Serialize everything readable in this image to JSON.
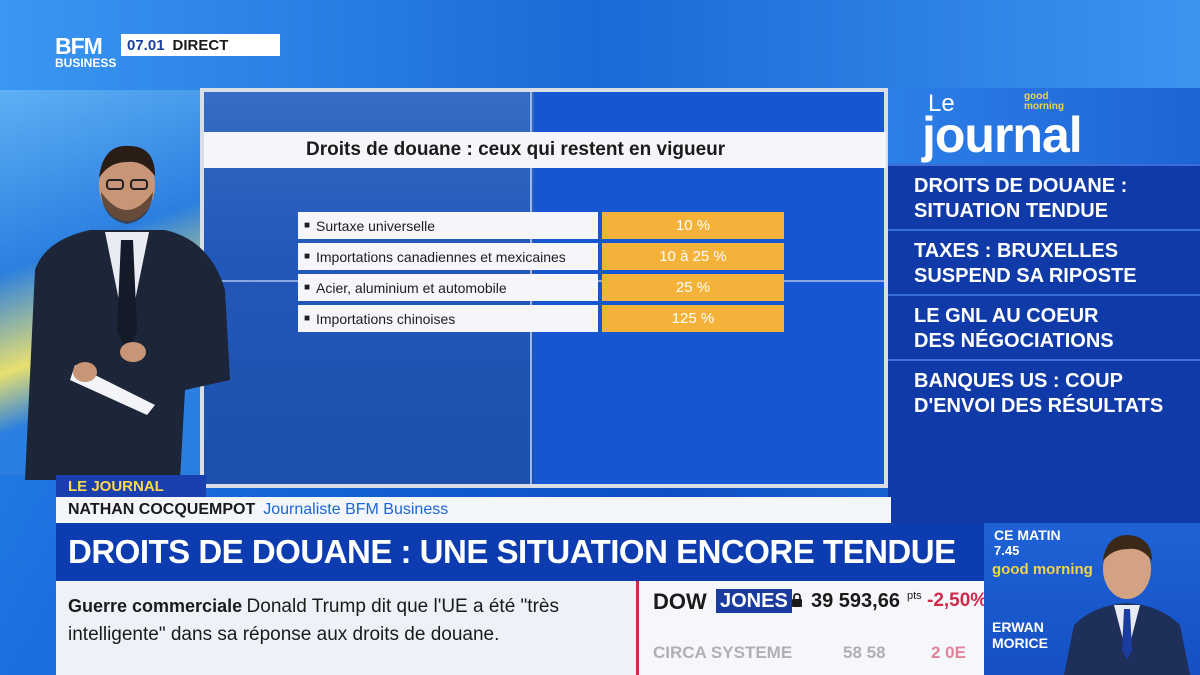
{
  "channel": {
    "logo_line1": "BFM",
    "logo_line2": "BUSINESS",
    "time": "07.01",
    "live_label": "DIRECT"
  },
  "screen": {
    "title": "Droits de douane : ceux qui restent en vigueur",
    "rows": [
      {
        "label": "Surtaxe universelle",
        "value": "10 %"
      },
      {
        "label": "Importations canadiennes et mexicaines",
        "value": "10 à 25 %"
      },
      {
        "label": "Acier, aluminium et automobile",
        "value": "25 %"
      },
      {
        "label": "Importations chinoises",
        "value": "125 %"
      }
    ]
  },
  "journal": {
    "le": "Le",
    "word": "journal",
    "badge": "good morning",
    "items": [
      [
        "DROITS DE DOUANE :",
        "SITUATION TENDUE"
      ],
      [
        "TAXES : BRUXELLES",
        "SUSPEND SA RIPOSTE"
      ],
      [
        "LE GNL AU COEUR",
        "DES NÉGOCIATIONS"
      ],
      [
        "BANQUES US : COUP",
        "D'ENVOI DES RÉSULTATS"
      ]
    ]
  },
  "lower_third": {
    "tag": "LE JOURNAL",
    "name": "NATHAN COCQUEMPOT",
    "role": "Journaliste BFM Business",
    "headline": "DROITS DE DOUANE : UNE SITUATION ENCORE TENDUE"
  },
  "ticker": {
    "topic": "Guerre commerciale",
    "text": "Donald Trump dit que l'UE a été \"très intelligente\" dans sa réponse aux droits de douane."
  },
  "market": {
    "index1_a": "DOW",
    "index1_b": "JONES",
    "index1_value": "39 593,66",
    "index1_unit": "pts",
    "index1_change": "-2,50%",
    "index2_name": "CIRCA SYSTEME",
    "index2_value": "58 58",
    "index2_change": "2 0E"
  },
  "promo": {
    "line1": "CE MATIN",
    "line2": "7.45",
    "show": "good morning",
    "guest_first": "ERWAN",
    "guest_last": "MORICE"
  },
  "colors": {
    "accent_blue": "#0d3bb0",
    "value_orange": "#f4b23a",
    "negative_red": "#d2284a",
    "highlight_yellow": "#ffd84a"
  }
}
